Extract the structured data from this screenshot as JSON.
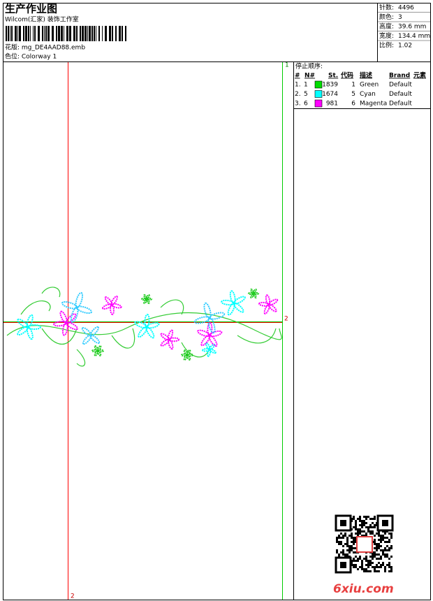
{
  "header": {
    "title": "生产作业图",
    "subtitle": "Wilcom(汇家) 装饰工作室",
    "design": "花版:  mg_DE4AAD88.emb",
    "colorway": "色位:  Colorway 1"
  },
  "info": [
    {
      "label": "针数:",
      "value": "4496"
    },
    {
      "label": "颜色:",
      "value": "3"
    },
    {
      "label": "高度:",
      "value": "39.6 mm"
    },
    {
      "label": "宽度:",
      "value": "134.4 mm"
    },
    {
      "label": "比例:",
      "value": "1.02"
    }
  ],
  "stop_sequence": {
    "title": "停止顺序:",
    "columns": [
      "#",
      "N#",
      "St.",
      "代码",
      "描述",
      "Brand",
      "元素"
    ],
    "rows": [
      {
        "index": "1.",
        "n": "1",
        "color": "#00dd00",
        "stitches": 1839,
        "code": "1",
        "description": "Green",
        "brand": "Default"
      },
      {
        "index": "2.",
        "n": "5",
        "color": "#00ffff",
        "stitches": 1674,
        "code": "5",
        "description": "Cyan",
        "brand": "Default"
      },
      {
        "index": "3.",
        "n": "6",
        "color": "#ff00ff",
        "stitches": 981,
        "code": "6",
        "description": "Magenta",
        "brand": "Default"
      }
    ]
  },
  "markers": {
    "top_right": "1",
    "middle_right": "2",
    "bottom_left": "2"
  },
  "watermark": "6xiu.com"
}
